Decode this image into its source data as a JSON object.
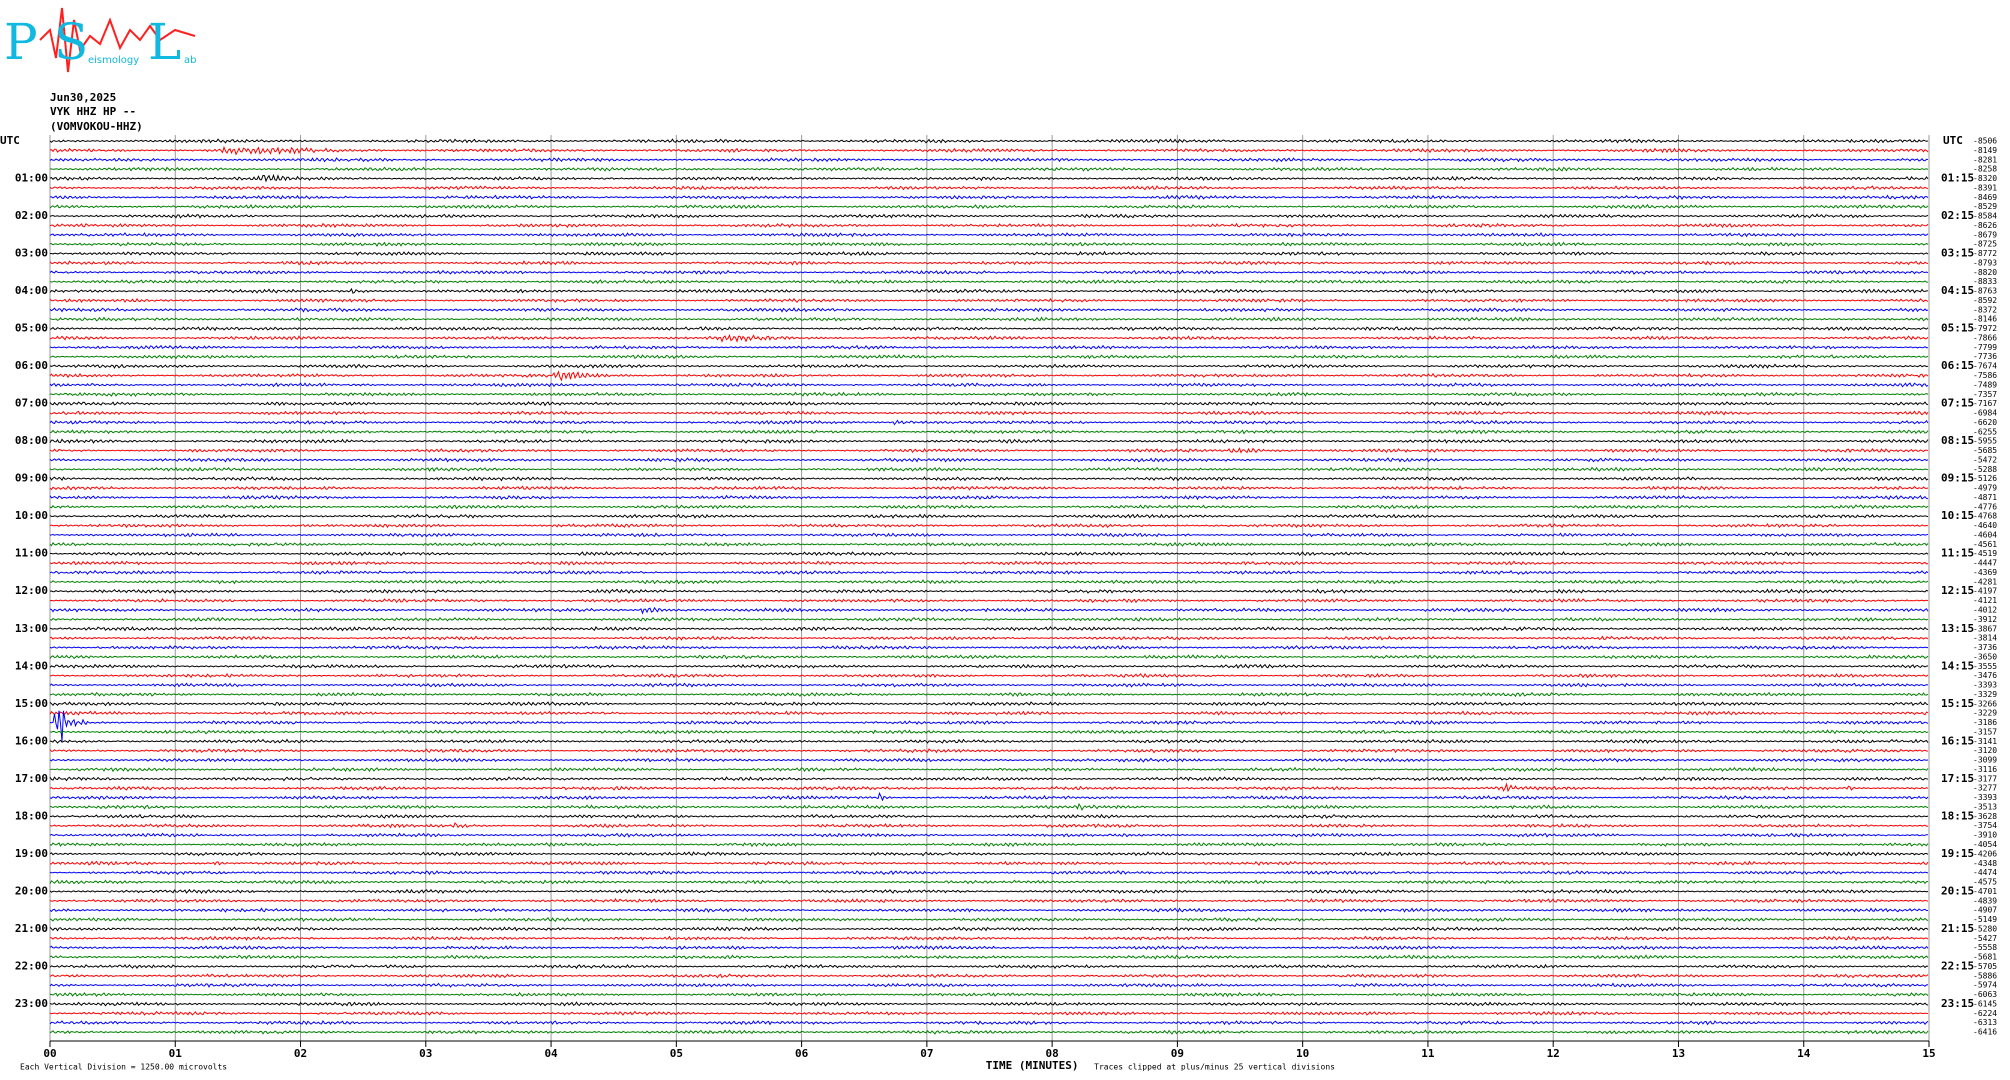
{
  "logo": {
    "letters": [
      "P",
      "S",
      "L"
    ],
    "small": [
      "eismology",
      "ab"
    ]
  },
  "header": {
    "date": "Jun30,2025",
    "station": "VYK HHZ HP --",
    "channel": "(VOMVOKOU-HHZ)"
  },
  "chart_data": {
    "type": "helicorder",
    "colors": [
      "#000000",
      "#ff0000",
      "#0000ff",
      "#008000"
    ],
    "left_corner": "UTC",
    "right_corner": "UTC",
    "left_labels": [
      "01:00",
      "02:00",
      "03:00",
      "04:00",
      "05:00",
      "06:00",
      "07:00",
      "08:00",
      "09:00",
      "10:00",
      "11:00",
      "12:00",
      "13:00",
      "14:00",
      "15:00",
      "16:00",
      "17:00",
      "18:00",
      "19:00",
      "20:00",
      "21:00",
      "22:00",
      "23:00"
    ],
    "right_labels": [
      "01:15",
      "02:15",
      "03:15",
      "04:15",
      "05:15",
      "06:15",
      "07:15",
      "08:15",
      "09:15",
      "10:15",
      "11:15",
      "12:15",
      "13:15",
      "14:15",
      "15:15",
      "16:15",
      "17:15",
      "18:15",
      "19:15",
      "20:15",
      "21:15",
      "22:15",
      "23:15"
    ],
    "trace_values": [
      -8506,
      -8149,
      -8281,
      -8258,
      -8320,
      -8391,
      -8469,
      -8529,
      -8584,
      -8626,
      -8679,
      -8725,
      -8772,
      -8793,
      -8820,
      -8833,
      -8763,
      -8592,
      -8372,
      -8146,
      -7972,
      -7866,
      -7799,
      -7736,
      -7674,
      -7586,
      -7489,
      -7357,
      -7167,
      -6984,
      -6620,
      -6255,
      -5955,
      -5685,
      -5472,
      -5288,
      -5126,
      -4979,
      -4871,
      -4776,
      -4768,
      -4640,
      -4604,
      -4561,
      -4519,
      -4447,
      -4369,
      -4281,
      -4197,
      -4121,
      -4012,
      -3912,
      -3867,
      -3814,
      -3736,
      -3650,
      -3555,
      -3476,
      -3393,
      -3329,
      -3266,
      -3229,
      -3186,
      -3157,
      -3141,
      -3120,
      -3099,
      -3116,
      -3177,
      -3277,
      -3393,
      -3513,
      -3628,
      -3754,
      -3910,
      -4054,
      -4206,
      -4348,
      -4474,
      -4575,
      -4701,
      -4839,
      -4907,
      -5149,
      -5280,
      -5427,
      -5558,
      -5681,
      -5705,
      -5886,
      -5974,
      -6063,
      -6145,
      -6224,
      -6313,
      -6416
    ],
    "xlim": [
      0,
      15
    ],
    "xticks": [
      {
        "value": 0,
        "label": "00"
      },
      {
        "value": 1,
        "label": "01"
      },
      {
        "value": 2,
        "label": "02"
      },
      {
        "value": 3,
        "label": "03"
      },
      {
        "value": 4,
        "label": "04"
      },
      {
        "value": 5,
        "label": "05"
      },
      {
        "value": 6,
        "label": "06"
      },
      {
        "value": 7,
        "label": "07"
      },
      {
        "value": 8,
        "label": "08"
      },
      {
        "value": 9,
        "label": "09"
      },
      10,
      11,
      12,
      13,
      14,
      15
    ],
    "xlabel": "TIME (MINUTES)",
    "note_left": "Each Vertical Division = 1250.00 microvolts",
    "note_right": "Traces clipped at plus/minus 25 vertical divisions",
    "grid": true
  }
}
